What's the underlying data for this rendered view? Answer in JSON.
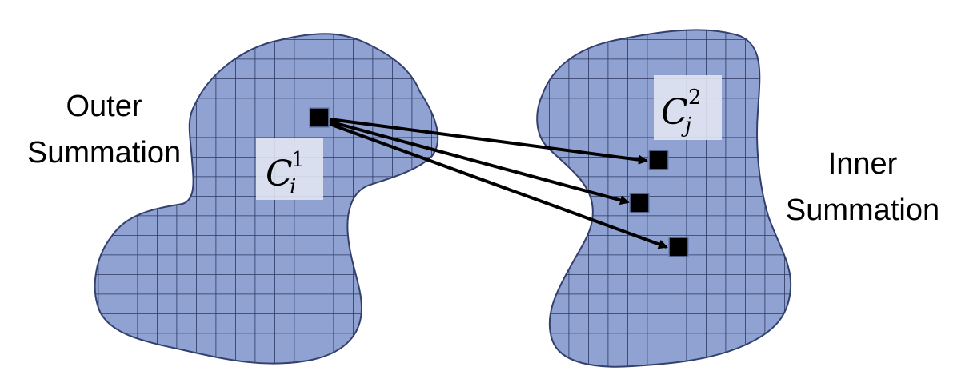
{
  "labels": {
    "outer": [
      "Outer",
      "Summation"
    ],
    "inner": [
      "Inner",
      "Summation"
    ]
  },
  "cluster_1": {
    "symbol": "C",
    "subscript": "i",
    "superscript": "1"
  },
  "cluster_2": {
    "symbol": "C",
    "subscript": "j",
    "superscript": "2"
  },
  "colors": {
    "region_fill": "#8fa2d2",
    "region_stroke": "#33406e",
    "grid_line": "#2b3760",
    "label_box": "#e4e7f1",
    "cell": "#000000",
    "arrow": "#000000"
  }
}
